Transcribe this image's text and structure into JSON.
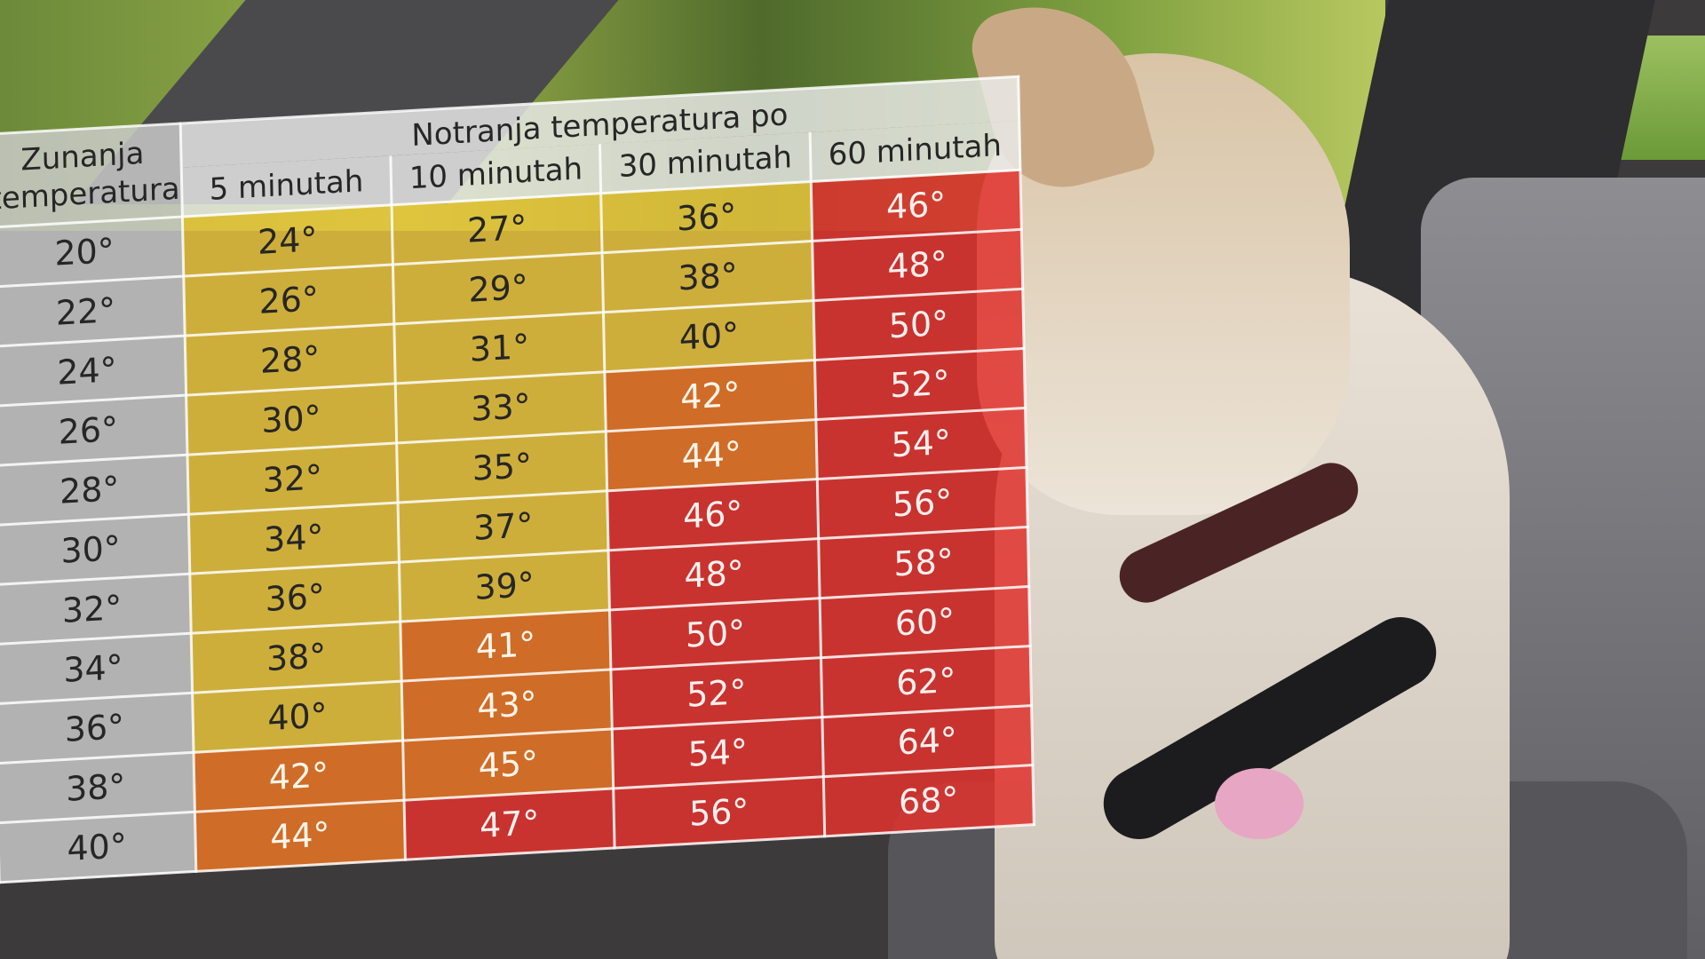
{
  "table": {
    "header": {
      "outside": "Zunanja temperatura",
      "group": "Notranja temperatura po",
      "columns": [
        "5 minutah",
        "10 minutah",
        "30 minutah",
        "60 minutah"
      ]
    },
    "rows": [
      [
        "20°",
        "24°",
        "27°",
        "36°",
        "46°"
      ],
      [
        "22°",
        "26°",
        "29°",
        "38°",
        "48°"
      ],
      [
        "24°",
        "28°",
        "31°",
        "40°",
        "50°"
      ],
      [
        "26°",
        "30°",
        "33°",
        "42°",
        "52°"
      ],
      [
        "28°",
        "32°",
        "35°",
        "44°",
        "54°"
      ],
      [
        "30°",
        "34°",
        "37°",
        "46°",
        "56°"
      ],
      [
        "32°",
        "36°",
        "39°",
        "48°",
        "58°"
      ],
      [
        "34°",
        "38°",
        "41°",
        "50°",
        "60°"
      ],
      [
        "36°",
        "40°",
        "43°",
        "52°",
        "62°"
      ],
      [
        "38°",
        "42°",
        "45°",
        "54°",
        "64°"
      ],
      [
        "40°",
        "44°",
        "47°",
        "56°",
        "68°"
      ]
    ]
  }
}
